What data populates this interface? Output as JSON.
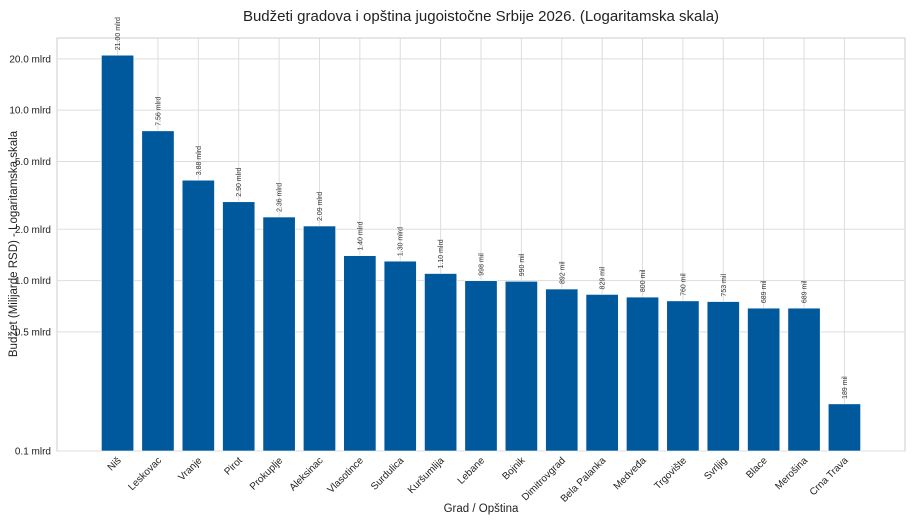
{
  "chart_data": {
    "type": "bar",
    "title": "Budžeti gradova i opština jugoistočne Srbije 2026. (Logaritamska skala)",
    "xlabel": "Grad / Opština",
    "ylabel": "Budžet (Milijarde RSD) - Logaritamska skala",
    "yscale": "log",
    "ylim": [
      0.1,
      26.5
    ],
    "grid": true,
    "bar_color": "#00599c",
    "categories": [
      "Niš",
      "Leskovac",
      "Vranje",
      "Pirot",
      "Prokuplje",
      "Aleksinac",
      "Vlasotince",
      "Surdulica",
      "Kuršumlija",
      "Lebane",
      "Bojnik",
      "Dimitrovgrad",
      "Bela Palanka",
      "Medveđa",
      "Trgovište",
      "Svrljig",
      "Blace",
      "Merošina",
      "Crna Trava"
    ],
    "values": [
      21.0,
      7.56,
      3.88,
      2.9,
      2.36,
      2.09,
      1.4,
      1.3,
      1.1,
      0.998,
      0.99,
      0.892,
      0.829,
      0.8,
      0.76,
      0.753,
      0.689,
      0.689,
      0.189
    ],
    "data_labels": [
      "21.00 mlrd",
      "7.56 mlrd",
      "3.88 mlrd",
      "2.90 mlrd",
      "2.36 mlrd",
      "2.09 mlrd",
      "1.40 mlrd",
      "1.30 mlrd",
      "1.10 mlrd",
      "998 mil",
      "990 mil",
      "892 mil",
      "829 mil",
      "800 mil",
      "760 mil",
      "753 mil",
      "689 mil",
      "689 mil",
      "189 mil"
    ],
    "yticks": [
      0.1,
      0.5,
      1.0,
      2.0,
      5.0,
      10.0,
      20.0
    ],
    "ytick_labels": [
      "0.1 mlrd",
      "0.5 mlrd",
      "1.0 mlrd",
      "2.0 mlrd",
      "5.0 mlrd",
      "10.0 mlrd",
      "20.0 mlrd"
    ]
  }
}
